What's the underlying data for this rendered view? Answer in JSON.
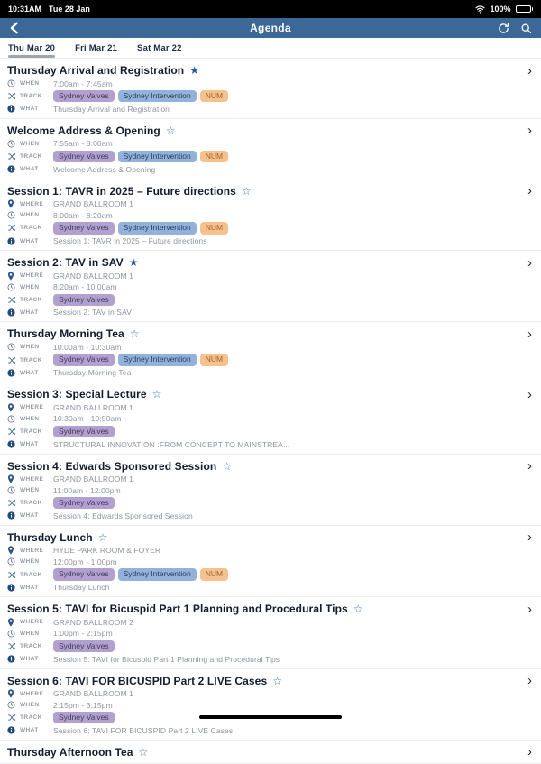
{
  "status_bar": {
    "time": "10:31AM",
    "date": "Tue 28 Jan",
    "battery": "100%"
  },
  "nav": {
    "title": "Agenda"
  },
  "tabs": [
    {
      "label": "Thu Mar 20",
      "active": true
    },
    {
      "label": "Fri Mar 21",
      "active": false
    },
    {
      "label": "Sat Mar 22",
      "active": false
    }
  ],
  "row_labels": {
    "where": "WHERE",
    "when": "WHEN",
    "track": "TRACK",
    "what": "WHAT"
  },
  "colors": {
    "nav_bar": "#3c6898",
    "star_filled": "#2d5f95",
    "star_outline": "#3a6cb0",
    "track_badges": {
      "Sydney Valves": {
        "bg": "#b2a0d0",
        "text": "#423c5e"
      },
      "Sydney Intervention": {
        "bg": "#92b2da",
        "text": "#2a3f63"
      },
      "NUM": {
        "bg": "#f5c28f",
        "text": "#a16328"
      }
    }
  },
  "sessions": [
    {
      "title": "Thursday Arrival and Registration",
      "starred": true,
      "when": "7:00am - 7:45am",
      "tracks": [
        "Sydney Valves",
        "Sydney Intervention",
        "NUM"
      ],
      "what": "Thursday Arrival and Registration"
    },
    {
      "title": "Welcome Address & Opening",
      "starred": false,
      "when": "7:55am - 8:00am",
      "tracks": [
        "Sydney Valves",
        "Sydney Intervention",
        "NUM"
      ],
      "what": "Welcome Address & Opening"
    },
    {
      "title": "Session 1: TAVR in 2025 – Future directions",
      "starred": false,
      "where": "GRAND BALLROOM 1",
      "when": "8:00am - 8:20am",
      "tracks": [
        "Sydney Valves",
        "Sydney Intervention",
        "NUM"
      ],
      "what": "Session 1: TAVR in 2025 – Future directions"
    },
    {
      "title": "Session 2: TAV in SAV",
      "starred": true,
      "where": "GRAND BALLROOM 1",
      "when": "8:20am - 10:00am",
      "tracks": [
        "Sydney Valves"
      ],
      "what": "Session 2: TAV in SAV"
    },
    {
      "title": "Thursday Morning Tea",
      "starred": false,
      "when": "10:00am - 10:30am",
      "tracks": [
        "Sydney Valves",
        "Sydney Intervention",
        "NUM"
      ],
      "what": "Thursday Morning Tea"
    },
    {
      "title": "Session 3: Special Lecture",
      "starred": false,
      "where": "GRAND BALLROOM 1",
      "when": "10:30am - 10:50am",
      "tracks": [
        "Sydney Valves"
      ],
      "what": "STRUCTURAL INNOVATION :FROM CONCEPT TO MAINSTREA..."
    },
    {
      "title": "Session 4: Edwards Sponsored Session",
      "starred": false,
      "where": "GRAND BALLROOM 1",
      "when": "11:00am - 12:00pm",
      "tracks": [
        "Sydney Valves"
      ],
      "what": "Session 4: Edwards Sponsored Session"
    },
    {
      "title": "Thursday Lunch",
      "starred": false,
      "where": "HYDE PARK ROOM & FOYER",
      "when": "12:00pm - 1:00pm",
      "tracks": [
        "Sydney Valves",
        "Sydney Intervention",
        "NUM"
      ],
      "what": "Thursday Lunch"
    },
    {
      "title": "Session 5: TAVI for Bicuspid Part 1 Planning and Procedural Tips",
      "starred": false,
      "where": "GRAND BALLROOM 2",
      "when": "1:00pm - 2:15pm",
      "tracks": [
        "Sydney Valves"
      ],
      "what": "Session 5: TAVI for Bicuspid Part 1 Planning and Procedural Tips"
    },
    {
      "title": "Session 6: TAVI FOR BICUSPID Part 2 LIVE Cases",
      "starred": false,
      "where": "GRAND BALLROOM 1",
      "when": "2:15pm - 3:15pm",
      "tracks": [
        "Sydney Valves"
      ],
      "what": "Session 6: TAVI FOR BICUSPID Part 2 LIVE Cases"
    },
    {
      "title": "Thursday Afternoon Tea",
      "starred": false
    }
  ]
}
